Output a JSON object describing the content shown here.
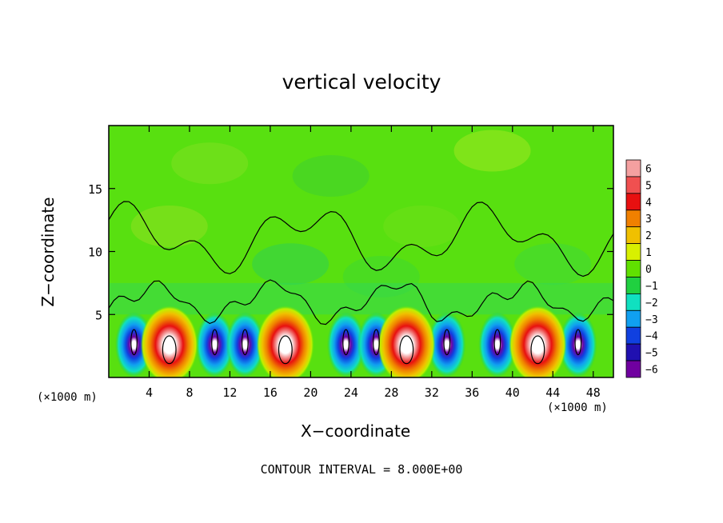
{
  "chart_data": {
    "type": "heatmap",
    "title": "vertical velocity",
    "xlabel": "X−coordinate",
    "ylabel": "Z−coordinate",
    "x_unit_label_left": "(×1000 m)",
    "x_unit_label_right": "(×1000 m)",
    "annotation": "CONTOUR INTERVAL = 8.000E+00",
    "xlim": [
      0,
      50
    ],
    "ylim": [
      0,
      20
    ],
    "xticks": [
      "4",
      "8",
      "12",
      "16",
      "20",
      "24",
      "28",
      "32",
      "36",
      "40",
      "44",
      "48"
    ],
    "yticks": [
      "5",
      "10",
      "15"
    ],
    "colorbar": {
      "levels": [
        "6",
        "5",
        "4",
        "3",
        "2",
        "1",
        "0",
        "−1",
        "−2",
        "−3",
        "−4",
        "−5",
        "−6"
      ],
      "colors": [
        "#f4a0a0",
        "#f05050",
        "#e81010",
        "#f08000",
        "#f0c000",
        "#d8f000",
        "#60e000",
        "#20d040",
        "#10e0c0",
        "#10a0f0",
        "#1040e0",
        "#2010b0",
        "#7000a0"
      ]
    },
    "updraft_centers_x": [
      6,
      17.5,
      29.5,
      42.5
    ],
    "downdraft_centers_x": [
      2.5,
      10.5,
      13.5,
      23.5,
      26.5,
      33.5,
      38.5,
      46.5
    ],
    "cell_peak_height": 5,
    "background_value": 0
  }
}
